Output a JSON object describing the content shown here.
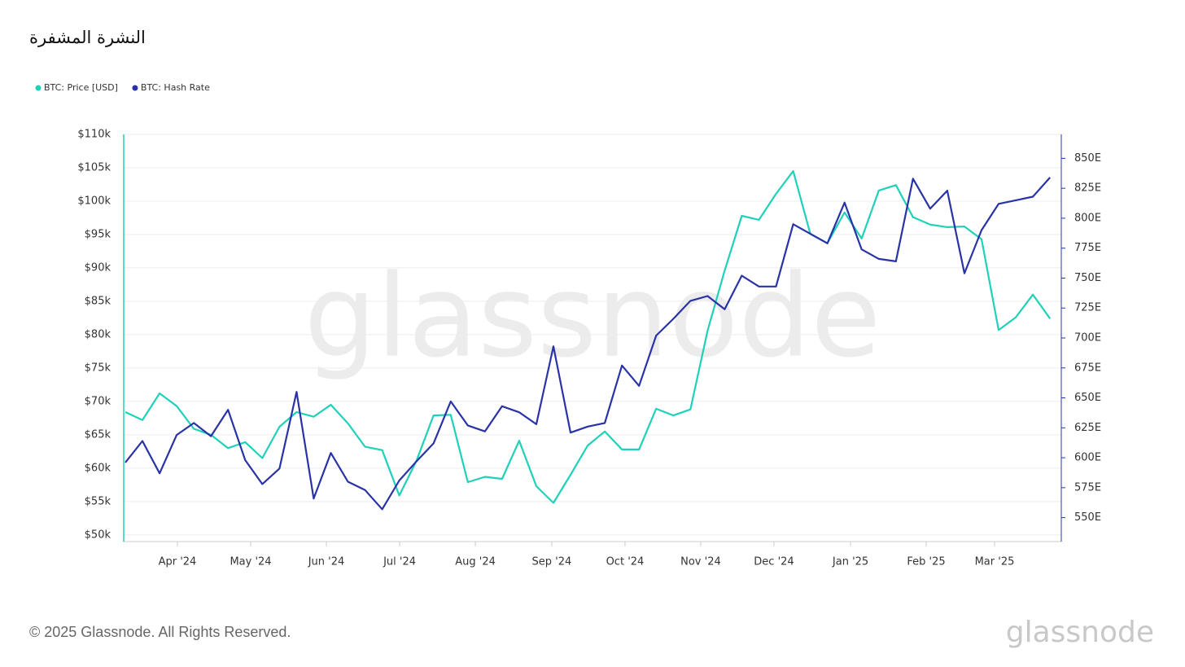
{
  "chart_data": {
    "type": "line",
    "title": "النشرة المشفرة",
    "watermark": "glassnode",
    "footer": "© 2025 Glassnode. All Rights Reserved.",
    "logo": "glassnode",
    "legend": "top-left",
    "grid": true,
    "categories": [
      null,
      null,
      null,
      null,
      null,
      null,
      null,
      null,
      null,
      null,
      null,
      null,
      null,
      null,
      null,
      null,
      null,
      null,
      null,
      null,
      null,
      null,
      null,
      null,
      null,
      null,
      null,
      null,
      null,
      null,
      null,
      null,
      null,
      null,
      null,
      null,
      null,
      null,
      null,
      null,
      null,
      null,
      null,
      null,
      null,
      null,
      null,
      null,
      null,
      null,
      null,
      null,
      null,
      null,
      null
    ],
    "xticks": [
      {
        "value": 3.04,
        "label": "Apr '24"
      },
      {
        "value": 7.32,
        "label": "May '24"
      },
      {
        "value": 11.74,
        "label": "Jun '24"
      },
      {
        "value": 16.02,
        "label": "Jul '24"
      },
      {
        "value": 20.44,
        "label": "Aug '24"
      },
      {
        "value": 24.9,
        "label": "Sep '24"
      },
      {
        "value": 29.18,
        "label": "Oct '24"
      },
      {
        "value": 33.6,
        "label": "Nov '24"
      },
      {
        "value": 37.88,
        "label": "Dec '24"
      },
      {
        "value": 42.35,
        "label": "Jan '25"
      },
      {
        "value": 46.77,
        "label": "Feb '25"
      },
      {
        "value": 50.76,
        "label": "Mar '25"
      }
    ],
    "ylim": [
      49000,
      110000
    ],
    "yticks": [
      {
        "value": 50000,
        "label": "$50k"
      },
      {
        "value": 55000,
        "label": "$55k"
      },
      {
        "value": 60000,
        "label": "$60k"
      },
      {
        "value": 65000,
        "label": "$65k"
      },
      {
        "value": 70000,
        "label": "$70k"
      },
      {
        "value": 75000,
        "label": "$75k"
      },
      {
        "value": 80000,
        "label": "$80k"
      },
      {
        "value": 85000,
        "label": "$85k"
      },
      {
        "value": 90000,
        "label": "$90k"
      },
      {
        "value": 95000,
        "label": "$95k"
      },
      {
        "value": 100000,
        "label": "$100k"
      },
      {
        "value": 105000,
        "label": "$105k"
      },
      {
        "value": 110000,
        "label": "$110k"
      }
    ],
    "y2lim": [
      530,
      870
    ],
    "y2ticks": [
      {
        "value": 550,
        "label": "550E"
      },
      {
        "value": 575,
        "label": "575E"
      },
      {
        "value": 600,
        "label": "600E"
      },
      {
        "value": 625,
        "label": "625E"
      },
      {
        "value": 650,
        "label": "650E"
      },
      {
        "value": 675,
        "label": "675E"
      },
      {
        "value": 700,
        "label": "700E"
      },
      {
        "value": 725,
        "label": "725E"
      },
      {
        "value": 750,
        "label": "750E"
      },
      {
        "value": 775,
        "label": "775E"
      },
      {
        "value": 800,
        "label": "800E"
      },
      {
        "value": 825,
        "label": "825E"
      },
      {
        "value": 850,
        "label": "850E"
      }
    ],
    "series": [
      {
        "name": "BTC: Price [USD]",
        "color": "#1fd1b9",
        "axis": "y",
        "values": [
          68400,
          67200,
          71200,
          69300,
          65900,
          65000,
          63000,
          63900,
          61500,
          66200,
          68400,
          67700,
          69500,
          66700,
          63200,
          62700,
          55900,
          61100,
          67900,
          68000,
          57900,
          58700,
          58400,
          64100,
          57300,
          54800,
          59000,
          63400,
          65500,
          62800,
          62800,
          68900,
          67900,
          68800,
          80600,
          89600,
          97800,
          97200,
          101100,
          104500,
          95100,
          93700,
          98300,
          94400,
          101600,
          102400,
          97600,
          96500,
          96100,
          96200,
          94300,
          80700,
          82600,
          86000,
          82400
        ]
      },
      {
        "name": "BTC: Hash Rate",
        "color": "#2a33a6",
        "axis": "y2",
        "values": [
          596,
          614,
          587,
          619,
          629,
          618,
          640,
          598,
          578,
          591,
          655,
          566,
          604,
          580,
          573,
          557,
          581,
          597,
          612,
          647,
          627,
          622,
          643,
          638,
          628,
          693,
          621,
          626,
          629,
          677,
          660,
          702,
          716,
          731,
          735,
          724,
          752,
          743,
          743,
          795,
          787,
          779,
          813,
          774,
          766,
          764,
          833,
          808,
          823,
          754,
          790,
          812,
          815,
          818,
          834
        ]
      }
    ]
  }
}
